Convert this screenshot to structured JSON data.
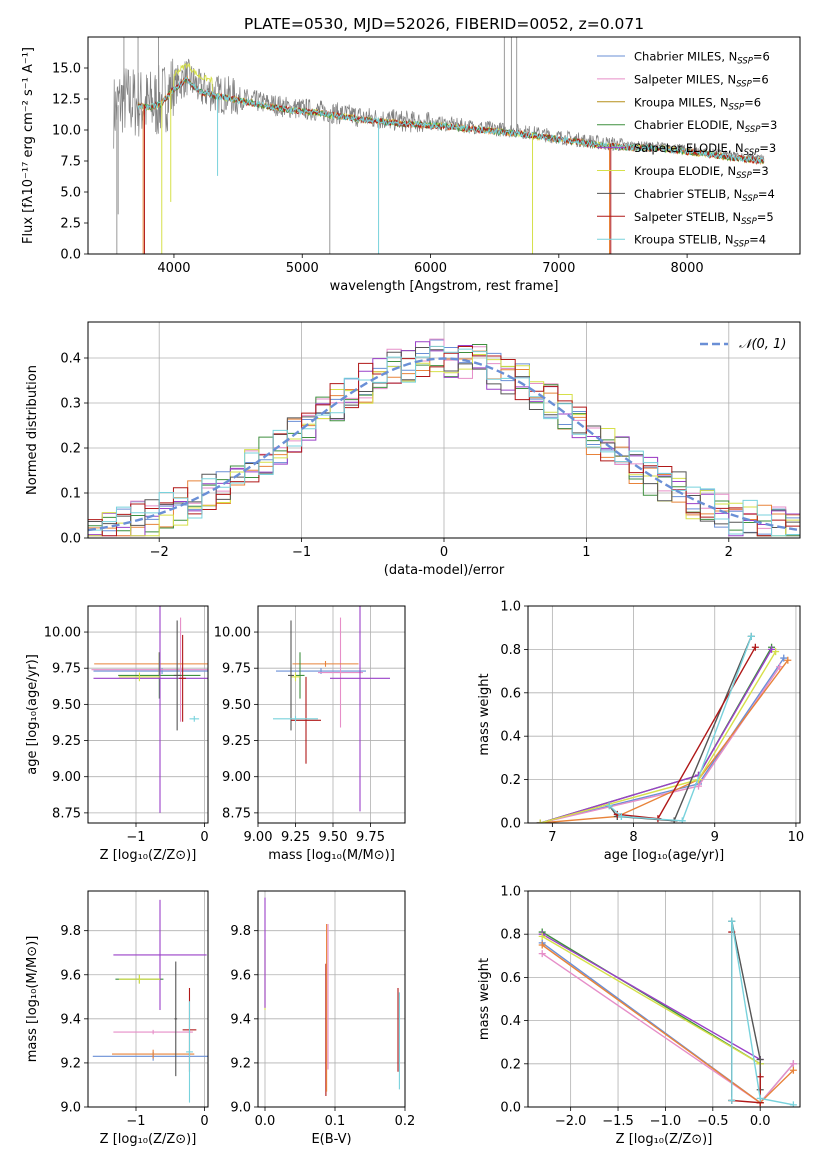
{
  "colors": {
    "chabrier_miles": "#6a8fd6",
    "salpeter_miles": "#e68ec8",
    "kroupa_miles": "#b58f1a",
    "chabrier_elodie": "#3f8f3f",
    "salpeter_elodie": "#9a40c8",
    "kroupa_elodie": "#d6e04a",
    "chabrier_stelib": "#555555",
    "salpeter_stelib": "#b01818",
    "kroupa_stelib": "#78d2dc",
    "orange": "#e8833a",
    "grey": "#808080"
  },
  "chart_data": [
    {
      "id": "spectrum",
      "type": "line",
      "title": "PLATE=0530, MJD=52026, FIBERID=0052, z=0.071",
      "xlabel": "wavelength [Angstrom, rest frame]",
      "ylabel": "Flux [fλ10⁻¹⁷ erg cm⁻² s⁻¹ A⁻¹]",
      "xlim": [
        3330,
        8880
      ],
      "ylim": [
        0,
        17.5
      ],
      "xticks": [
        4000,
        5000,
        6000,
        7000,
        8000
      ],
      "yticks": [
        0.0,
        2.5,
        5.0,
        7.5,
        10.0,
        12.5,
        15.0
      ],
      "ytick_labels": [
        "0.0",
        "2.5",
        "5.0",
        "7.5",
        "10.0",
        "12.5",
        "15.0"
      ],
      "legend_position": "top-right",
      "legend": [
        {
          "main": "Chabrier MILES, N",
          "sub": "SSP",
          "tail": "=6",
          "color": "chabrier_miles"
        },
        {
          "main": "Salpeter MILES, N",
          "sub": "SSP",
          "tail": "=6",
          "color": "salpeter_miles"
        },
        {
          "main": "Kroupa MILES, N",
          "sub": "SSP",
          "tail": "=6",
          "color": "kroupa_miles"
        },
        {
          "main": "Chabrier ELODIE, N",
          "sub": "SSP",
          "tail": "=3",
          "color": "chabrier_elodie"
        },
        {
          "main": "Salpeter ELODIE, N",
          "sub": "SSP",
          "tail": "=3",
          "color": "salpeter_elodie"
        },
        {
          "main": "Kroupa ELODIE, N",
          "sub": "SSP",
          "tail": "=3",
          "color": "kroupa_elodie"
        },
        {
          "main": "Chabrier STELIB, N",
          "sub": "SSP",
          "tail": "=4",
          "color": "chabrier_stelib"
        },
        {
          "main": "Salpeter STELIB, N",
          "sub": "SSP",
          "tail": "=5",
          "color": "salpeter_stelib"
        },
        {
          "main": "Kroupa STELIB, N",
          "sub": "SSP",
          "tail": "=4",
          "color": "kroupa_stelib"
        }
      ],
      "continuum": [
        [
          3530,
          11.5
        ],
        [
          3600,
          12.5
        ],
        [
          3700,
          12.2
        ],
        [
          3800,
          12.0
        ],
        [
          3900,
          12.3
        ],
        [
          4000,
          13.5
        ],
        [
          4100,
          14.3
        ],
        [
          4200,
          13.3
        ],
        [
          4300,
          13.0
        ],
        [
          4500,
          12.6
        ],
        [
          4700,
          12.2
        ],
        [
          4900,
          11.8
        ],
        [
          5100,
          11.6
        ],
        [
          5300,
          11.3
        ],
        [
          5500,
          11.0
        ],
        [
          5800,
          10.7
        ],
        [
          6100,
          10.5
        ],
        [
          6300,
          10.3
        ],
        [
          6500,
          10.1
        ],
        [
          6700,
          9.9
        ],
        [
          6900,
          9.6
        ],
        [
          7100,
          9.3
        ],
        [
          7300,
          9.0
        ],
        [
          7500,
          8.8
        ],
        [
          7800,
          8.7
        ],
        [
          8100,
          8.3
        ],
        [
          8400,
          7.9
        ],
        [
          8600,
          7.7
        ]
      ],
      "model_range": [
        3720,
        8600
      ],
      "data_range": [
        3530,
        8600
      ],
      "dips": [
        {
          "x": 3760,
          "y": 0,
          "color": "orange"
        },
        {
          "x": 3770,
          "y": 0,
          "color": "salpeter_stelib"
        },
        {
          "x": 3905,
          "y": 0,
          "color": "kroupa_elodie"
        },
        {
          "x": 3975,
          "y": 4.2,
          "color": "kroupa_elodie"
        },
        {
          "x": 4340,
          "y": 6.3,
          "color": "kroupa_stelib"
        },
        {
          "x": 5595,
          "y": 0,
          "color": "kroupa_stelib"
        },
        {
          "x": 6795,
          "y": 0,
          "color": "kroupa_elodie"
        },
        {
          "x": 7395,
          "y": 0,
          "color": "orange"
        },
        {
          "x": 7405,
          "y": 0,
          "color": "salpeter_stelib"
        }
      ],
      "spikes": [
        {
          "x": 3555,
          "y": 0
        },
        {
          "x": 3565,
          "y": 3.2
        },
        {
          "x": 3610,
          "y": 17.5
        },
        {
          "x": 3720,
          "y": 17.5
        },
        {
          "x": 3880,
          "y": 17.5
        },
        {
          "x": 5215,
          "y": 0
        },
        {
          "x": 6575,
          "y": 17.5
        },
        {
          "x": 6630,
          "y": 17.5
        },
        {
          "x": 6672,
          "y": 17.5
        }
      ]
    },
    {
      "id": "residuals",
      "type": "line",
      "xlabel": "(data-model)/error",
      "ylabel": "Normed distribution",
      "xlim": [
        -2.5,
        2.5
      ],
      "ylim": [
        0,
        0.48
      ],
      "xticks": [
        -2,
        -1,
        0,
        1,
        2
      ],
      "xtick_labels": [
        "−2",
        "−1",
        "0",
        "1",
        "2"
      ],
      "yticks": [
        0.0,
        0.1,
        0.2,
        0.3,
        0.4
      ],
      "ytick_labels": [
        "0.0",
        "0.1",
        "0.2",
        "0.3",
        "0.4"
      ],
      "legend_position": "top-right",
      "legend_label": "𝒩(0, 1)",
      "legend_color": "chabrier_miles",
      "bins": 50,
      "hist_seed_colors": [
        "chabrier_miles",
        "salpeter_miles",
        "orange",
        "chabrier_elodie",
        "salpeter_elodie",
        "kroupa_elodie",
        "chabrier_stelib",
        "salpeter_stelib",
        "kroupa_stelib"
      ]
    },
    {
      "id": "age_vs_z",
      "type": "scatter",
      "xlabel": "Z [log₁₀(Z/Z⊙)]",
      "ylabel": "age  [log₁₀(age/yr)]",
      "xlim": [
        -1.7,
        0.05
      ],
      "ylim": [
        8.68,
        10.18
      ],
      "xticks": [
        -1,
        0
      ],
      "xtick_labels": [
        "−1",
        "0"
      ],
      "yticks": [
        8.75,
        9.0,
        9.25,
        9.5,
        9.75,
        10.0
      ],
      "ytick_labels": [
        "8.75",
        "9.00",
        "9.25",
        "9.50",
        "9.75",
        "10.00"
      ],
      "points": [
        {
          "x": -0.62,
          "y": 9.73,
          "xerr": 1.0,
          "yerr": 0.02,
          "color": "chabrier_miles"
        },
        {
          "x": -0.35,
          "y": 9.74,
          "xerr": 1.3,
          "yerr": 0.36,
          "color": "salpeter_miles"
        },
        {
          "x": -0.66,
          "y": 9.78,
          "xerr": 0.95,
          "yerr": 0.08,
          "color": "orange"
        },
        {
          "x": -0.66,
          "y": 9.7,
          "xerr": 0.6,
          "yerr": 0.16,
          "color": "chabrier_elodie"
        },
        {
          "x": -0.65,
          "y": 9.68,
          "xerr": 0.97,
          "yerr": 0.93,
          "color": "salpeter_elodie"
        },
        {
          "x": -0.95,
          "y": 9.69,
          "xerr": 0.3,
          "yerr": 0.03,
          "color": "kroupa_elodie"
        },
        {
          "x": -0.4,
          "y": 9.7,
          "xerr": 0.05,
          "yerr": 0.38,
          "color": "chabrier_stelib"
        },
        {
          "x": -0.32,
          "y": 9.68,
          "xerr": 0.05,
          "yerr": 0.3,
          "color": "salpeter_stelib"
        },
        {
          "x": -0.15,
          "y": 9.4,
          "xerr": 0.07,
          "yerr": 0.02,
          "color": "kroupa_stelib"
        }
      ]
    },
    {
      "id": "age_vs_mass",
      "type": "scatter",
      "xlabel": "mass [log₁₀(M/M⊙)]",
      "ylabel": "",
      "xlim": [
        9.0,
        9.98
      ],
      "ylim": [
        8.68,
        10.18
      ],
      "xticks": [
        9.0,
        9.25,
        9.5,
        9.75
      ],
      "xtick_labels": [
        "9.00",
        "9.25",
        "9.50",
        "9.75"
      ],
      "yticks": [
        8.75,
        9.0,
        9.25,
        9.5,
        9.75,
        10.0
      ],
      "ytick_labels": [
        "8.75",
        "9.00",
        "9.25",
        "9.50",
        "9.75",
        "10.00"
      ],
      "points": [
        {
          "x": 9.42,
          "y": 9.73,
          "xerr": 0.3,
          "yerr": 0.02,
          "color": "chabrier_miles"
        },
        {
          "x": 9.55,
          "y": 9.72,
          "xerr": 0.15,
          "yerr": 0.38,
          "color": "salpeter_miles"
        },
        {
          "x": 9.45,
          "y": 9.78,
          "xerr": 0.22,
          "yerr": 0.02,
          "color": "orange"
        },
        {
          "x": 9.28,
          "y": 9.7,
          "xerr": 0.03,
          "yerr": 0.16,
          "color": "chabrier_elodie"
        },
        {
          "x": 9.68,
          "y": 9.68,
          "xerr": 0.2,
          "yerr": 0.92,
          "color": "salpeter_elodie"
        },
        {
          "x": 9.25,
          "y": 9.69,
          "xerr": 0.03,
          "yerr": 0.03,
          "color": "kroupa_elodie"
        },
        {
          "x": 9.22,
          "y": 9.7,
          "xerr": 0.02,
          "yerr": 0.38,
          "color": "chabrier_stelib"
        },
        {
          "x": 9.32,
          "y": 9.39,
          "xerr": 0.1,
          "yerr": 0.3,
          "color": "salpeter_stelib"
        },
        {
          "x": 9.25,
          "y": 9.4,
          "xerr": 0.15,
          "yerr": 0.02,
          "color": "kroupa_stelib"
        }
      ]
    },
    {
      "id": "mass_weight_vs_age",
      "type": "line",
      "xlabel": "age  [log₁₀(age/yr)]",
      "ylabel": "mass weight",
      "xlim": [
        6.7,
        10.05
      ],
      "ylim": [
        0,
        1
      ],
      "xticks": [
        7,
        8,
        9,
        10
      ],
      "xtick_labels": [
        "7",
        "8",
        "9",
        "10"
      ],
      "yticks": [
        0.0,
        0.2,
        0.4,
        0.6,
        0.8,
        1.0
      ],
      "ytick_labels": [
        "0.0",
        "0.2",
        "0.4",
        "0.6",
        "0.8",
        "1.0"
      ],
      "series": [
        {
          "color": "chabrier_miles",
          "x": [
            6.85,
            8.8,
            9.85
          ],
          "y": [
            0.0,
            0.18,
            0.76
          ]
        },
        {
          "color": "salpeter_miles",
          "x": [
            6.85,
            8.8,
            9.8
          ],
          "y": [
            0.0,
            0.17,
            0.72
          ]
        },
        {
          "color": "orange",
          "x": [
            6.85,
            7.8,
            8.8,
            9.9
          ],
          "y": [
            0.0,
            0.03,
            0.2,
            0.75
          ]
        },
        {
          "color": "chabrier_elodie",
          "x": [
            6.85,
            8.8,
            9.7
          ],
          "y": [
            0.0,
            0.22,
            0.81
          ]
        },
        {
          "color": "salpeter_elodie",
          "x": [
            6.85,
            8.8,
            9.7
          ],
          "y": [
            0.0,
            0.22,
            0.8
          ]
        },
        {
          "color": "kroupa_elodie",
          "x": [
            6.85,
            8.8,
            9.75
          ],
          "y": [
            0.0,
            0.2,
            0.79
          ]
        },
        {
          "color": "chabrier_stelib",
          "x": [
            7.7,
            7.8,
            8.5,
            9.45
          ],
          "y": [
            0.08,
            0.03,
            0.01,
            0.86
          ]
        },
        {
          "color": "salpeter_stelib",
          "x": [
            7.8,
            8.3,
            9.5
          ],
          "y": [
            0.04,
            0.02,
            0.81
          ]
        },
        {
          "color": "kroupa_stelib",
          "x": [
            7.7,
            7.85,
            8.6,
            9.45
          ],
          "y": [
            0.08,
            0.03,
            0.01,
            0.86
          ]
        }
      ]
    },
    {
      "id": "mass_vs_z",
      "type": "scatter",
      "xlabel": "Z [log₁₀(Z/Z⊙)]",
      "ylabel": "mass [log₁₀(M/M⊙)]",
      "xlim": [
        -1.7,
        0.05
      ],
      "ylim": [
        9.0,
        9.98
      ],
      "xticks": [
        -1,
        0
      ],
      "xtick_labels": [
        "−1",
        "0"
      ],
      "yticks": [
        9.0,
        9.2,
        9.4,
        9.6,
        9.8
      ],
      "ytick_labels": [
        "9.0",
        "9.2",
        "9.4",
        "9.6",
        "9.8"
      ],
      "points": [
        {
          "x": -0.75,
          "y": 9.23,
          "xerr": 0.88,
          "yerr": 0.02,
          "color": "chabrier_miles"
        },
        {
          "x": -0.75,
          "y": 9.34,
          "xerr": 0.58,
          "yerr": 0.01,
          "color": "salpeter_miles"
        },
        {
          "x": -0.75,
          "y": 9.24,
          "xerr": 0.6,
          "yerr": 0.02,
          "color": "orange"
        },
        {
          "x": -0.95,
          "y": 9.58,
          "xerr": 0.35,
          "yerr": 0.02,
          "color": "chabrier_elodie"
        },
        {
          "x": -0.65,
          "y": 9.69,
          "xerr": 0.68,
          "yerr": 0.25,
          "color": "salpeter_elodie"
        },
        {
          "x": -0.95,
          "y": 9.58,
          "xerr": 0.3,
          "yerr": 0.02,
          "color": "kroupa_elodie"
        },
        {
          "x": -0.42,
          "y": 9.4,
          "xerr": 0.02,
          "yerr": 0.26,
          "color": "chabrier_stelib"
        },
        {
          "x": -0.22,
          "y": 9.35,
          "xerr": 0.1,
          "yerr": 0.19,
          "color": "salpeter_stelib"
        },
        {
          "x": -0.22,
          "y": 9.25,
          "xerr": 0.05,
          "yerr": 0.23,
          "color": "kroupa_stelib"
        }
      ]
    },
    {
      "id": "mass_vs_ebv",
      "type": "scatter",
      "xlabel": "E(B-V)",
      "ylabel": "",
      "xlim": [
        -0.01,
        0.2
      ],
      "ylim": [
        9.0,
        9.98
      ],
      "xticks": [
        0.0,
        0.1,
        0.2
      ],
      "xtick_labels": [
        "0.0",
        "0.1",
        "0.2"
      ],
      "yticks": [
        9.0,
        9.2,
        9.4,
        9.6,
        9.8
      ],
      "ytick_labels": [
        "9.0",
        "9.2",
        "9.4",
        "9.6",
        "9.8"
      ],
      "points": [
        {
          "x": 0.0,
          "y": 9.6,
          "xerr": 0,
          "yerr": 0.16,
          "color": "kroupa_elodie"
        },
        {
          "x": 0.0,
          "y": 9.7,
          "xerr": 0,
          "yerr": 0.25,
          "color": "salpeter_elodie"
        },
        {
          "x": 0.087,
          "y": 9.35,
          "xerr": 0,
          "yerr": 0.3,
          "color": "salpeter_stelib"
        },
        {
          "x": 0.088,
          "y": 9.45,
          "xerr": 0,
          "yerr": 0.38,
          "color": "orange"
        },
        {
          "x": 0.09,
          "y": 9.5,
          "xerr": 0,
          "yerr": 0.33,
          "color": "salpeter_miles"
        },
        {
          "x": 0.192,
          "y": 9.3,
          "xerr": 0,
          "yerr": 0.22,
          "color": "kroupa_stelib"
        },
        {
          "x": 0.19,
          "y": 9.35,
          "xerr": 0,
          "yerr": 0.19,
          "color": "salpeter_stelib"
        }
      ]
    },
    {
      "id": "mass_weight_vs_z",
      "type": "line",
      "xlabel": "Z [log₁₀(Z/Z⊙)]",
      "ylabel": "mass weight",
      "xlim": [
        -2.45,
        0.42
      ],
      "ylim": [
        0,
        1
      ],
      "xticks": [
        -2.0,
        -1.5,
        -1.0,
        -0.5,
        0.0
      ],
      "xtick_labels": [
        "−2.0",
        "−1.5",
        "−1.0",
        "−0.5",
        "0.0"
      ],
      "yticks": [
        0.0,
        0.2,
        0.4,
        0.6,
        0.8,
        1.0
      ],
      "ytick_labels": [
        "0.0",
        "0.2",
        "0.4",
        "0.6",
        "0.8",
        "1.0"
      ],
      "series": [
        {
          "color": "chabrier_miles",
          "x": [
            -2.3,
            0.0,
            0.35
          ],
          "y": [
            0.76,
            0.02,
            0.2
          ]
        },
        {
          "color": "salpeter_miles",
          "x": [
            -2.3,
            0.0,
            0.35
          ],
          "y": [
            0.71,
            0.02,
            0.2
          ]
        },
        {
          "color": "orange",
          "x": [
            -2.3,
            0.0,
            0.35
          ],
          "y": [
            0.75,
            0.02,
            0.17
          ]
        },
        {
          "color": "chabrier_elodie",
          "x": [
            -2.3,
            0.0,
            0.0
          ],
          "y": [
            0.81,
            0.2,
            0.02
          ]
        },
        {
          "color": "salpeter_elodie",
          "x": [
            -2.3,
            0.0,
            0.0
          ],
          "y": [
            0.8,
            0.22,
            0.02
          ]
        },
        {
          "color": "kroupa_elodie",
          "x": [
            -2.3,
            0.0,
            0.0
          ],
          "y": [
            0.79,
            0.2,
            0.02
          ]
        },
        {
          "color": "chabrier_stelib",
          "x": [
            -0.3,
            -0.3,
            0.0,
            0.0
          ],
          "y": [
            0.03,
            0.86,
            0.22,
            0.08
          ]
        },
        {
          "color": "salpeter_stelib",
          "x": [
            -0.3,
            -0.3,
            0.0,
            0.0
          ],
          "y": [
            0.81,
            0.03,
            0.02,
            0.14
          ]
        },
        {
          "color": "kroupa_stelib",
          "x": [
            -0.3,
            -0.3,
            0.0,
            0.35
          ],
          "y": [
            0.03,
            0.86,
            0.04,
            0.01
          ]
        }
      ]
    }
  ]
}
